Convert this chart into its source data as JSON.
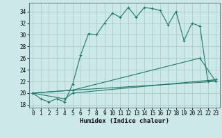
{
  "bg_color": "#cce8e8",
  "grid_color": "#aacccc",
  "line_color": "#1a7a6a",
  "xlabel": "Humidex (Indice chaleur)",
  "xlim": [
    -0.5,
    23.5
  ],
  "ylim": [
    17.5,
    35.5
  ],
  "yticks": [
    18,
    20,
    22,
    24,
    26,
    28,
    30,
    32,
    34
  ],
  "xticks": [
    0,
    1,
    2,
    3,
    4,
    5,
    6,
    7,
    8,
    9,
    10,
    11,
    12,
    13,
    14,
    15,
    16,
    17,
    18,
    19,
    20,
    21,
    22,
    23
  ],
  "line1_x": [
    0,
    1,
    2,
    3,
    4,
    5,
    6,
    7,
    8,
    9,
    10,
    11,
    12,
    13,
    14,
    15,
    16,
    17,
    18,
    19,
    20,
    21,
    22,
    23
  ],
  "line1_y": [
    20,
    19,
    18.5,
    19,
    18.5,
    21.5,
    26.5,
    30.2,
    30.0,
    32.0,
    33.7,
    33.0,
    34.7,
    33.0,
    34.7,
    34.5,
    34.2,
    31.7,
    34.0,
    29.0,
    32.0,
    31.5,
    22.0,
    22.3
  ],
  "line2_x": [
    0,
    4,
    5,
    23
  ],
  "line2_y": [
    20,
    19,
    20,
    22.3
  ],
  "line3_x": [
    0,
    5,
    23
  ],
  "line3_y": [
    20,
    20.5,
    22.0
  ],
  "line4_x": [
    0,
    5,
    21,
    23
  ],
  "line4_y": [
    20,
    20.5,
    26.0,
    22.0
  ]
}
